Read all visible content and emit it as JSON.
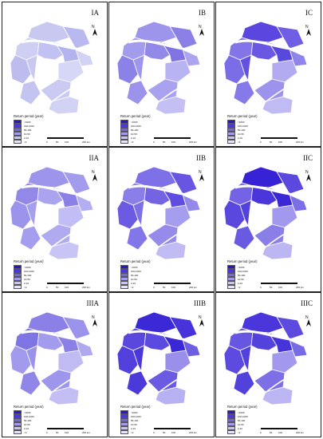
{
  "panels": [
    {
      "id": "IA",
      "title": "IA",
      "fills": [
        "#c8c8f1",
        "#b9b9f0",
        "#cfcff3",
        "#c2c2f2",
        "#b3b3ee",
        "#d2d2f4",
        "#bcbcef",
        "#c8c8f1",
        "#d6d6f6",
        "#c4c4f2",
        "#cacaf3",
        "#d2d2f4"
      ]
    },
    {
      "id": "IB",
      "title": "IB",
      "fills": [
        "#9d95ec",
        "#8a80e6",
        "#a39ced",
        "#9188e8",
        "#8074e4",
        "#aba5ef",
        "#8b82e7",
        "#9e96ec",
        "#b8b3f2",
        "#9a92eb",
        "#a9a2ef",
        "#c4c0f4"
      ]
    },
    {
      "id": "IC",
      "title": "IC",
      "fills": [
        "#5b46df",
        "#6f5de3",
        "#8375e8",
        "#6a58e2",
        "#5848dc",
        "#8f84ea",
        "#7b6de6",
        "#6352e0",
        "#b3abf1",
        "#8679e9",
        "#9d93ec",
        "#c1bbf3"
      ]
    },
    {
      "id": "IIA",
      "title": "IIA",
      "fills": [
        "#9d95ec",
        "#a39ced",
        "#9188e8",
        "#aaa4ef",
        "#8a80e6",
        "#b3adf1",
        "#9c94ec",
        "#a69fee",
        "#c2bdf4",
        "#a59eee",
        "#b0aaf0",
        "#c8c4f5"
      ]
    },
    {
      "id": "IIB",
      "title": "IIB",
      "fills": [
        "#7e70e6",
        "#6855e1",
        "#8a7ee9",
        "#7464e4",
        "#5f4ddf",
        "#9489eb",
        "#6b5ae2",
        "#7d6fe6",
        "#a59dee",
        "#8376e8",
        "#968bea",
        "#c1bbf3"
      ]
    },
    {
      "id": "IIC",
      "title": "IIC",
      "fills": [
        "#3722d6",
        "#5b48df",
        "#7463e4",
        "#4a36da",
        "#3a28d7",
        "#7c6ee6",
        "#5a47de",
        "#5241dc",
        "#a298ee",
        "#6a5ae2",
        "#8a7ee8",
        "#bcb6f2"
      ]
    },
    {
      "id": "IIIA",
      "title": "IIIA",
      "fills": [
        "#8a80e6",
        "#9a92eb",
        "#7f74e4",
        "#a39bed",
        "#8a80e6",
        "#b0a9f0",
        "#a29aed",
        "#9b93eb",
        "#c0bbf3",
        "#8f86e8",
        "#9e96ec",
        "#c3bff4"
      ]
    },
    {
      "id": "IIIB",
      "title": "IIIB",
      "fills": [
        "#3b28d7",
        "#4633da",
        "#5a48de",
        "#5b4adf",
        "#3a28d7",
        "#6d5ee2",
        "#5240dc",
        "#4a38db",
        "#9a90ec",
        "#4b39da",
        "#6b5ae2",
        "#b7b1f2"
      ]
    },
    {
      "id": "IIIC",
      "title": "IIIC",
      "fills": [
        "#4a36da",
        "#5c4bde",
        "#6756e1",
        "#5442dc",
        "#4633da",
        "#7869e5",
        "#5c4bde",
        "#5341dc",
        "#a298ee",
        "#5341dc",
        "#7d70e6",
        "#bcb6f2"
      ]
    }
  ],
  "legend": {
    "title": "Return period (year)",
    "items": [
      {
        "label": ">1000",
        "color": "#2a16d2"
      },
      {
        "label": "100-1000",
        "color": "#4a38da"
      },
      {
        "label": "50-100",
        "color": "#7466e3"
      },
      {
        "label": "10-50",
        "color": "#a39bed"
      },
      {
        "label": "2-10",
        "color": "#c8c4f5"
      },
      {
        "label": "<2",
        "color": "#e6e4fb"
      }
    ]
  },
  "scale_bar": {
    "ticks": [
      "0",
      "50",
      "100",
      "200 km"
    ]
  },
  "north_label": "N",
  "colors": {
    "water": "#ffffff",
    "border": "#ffffff",
    "panel_border": "#222222"
  }
}
